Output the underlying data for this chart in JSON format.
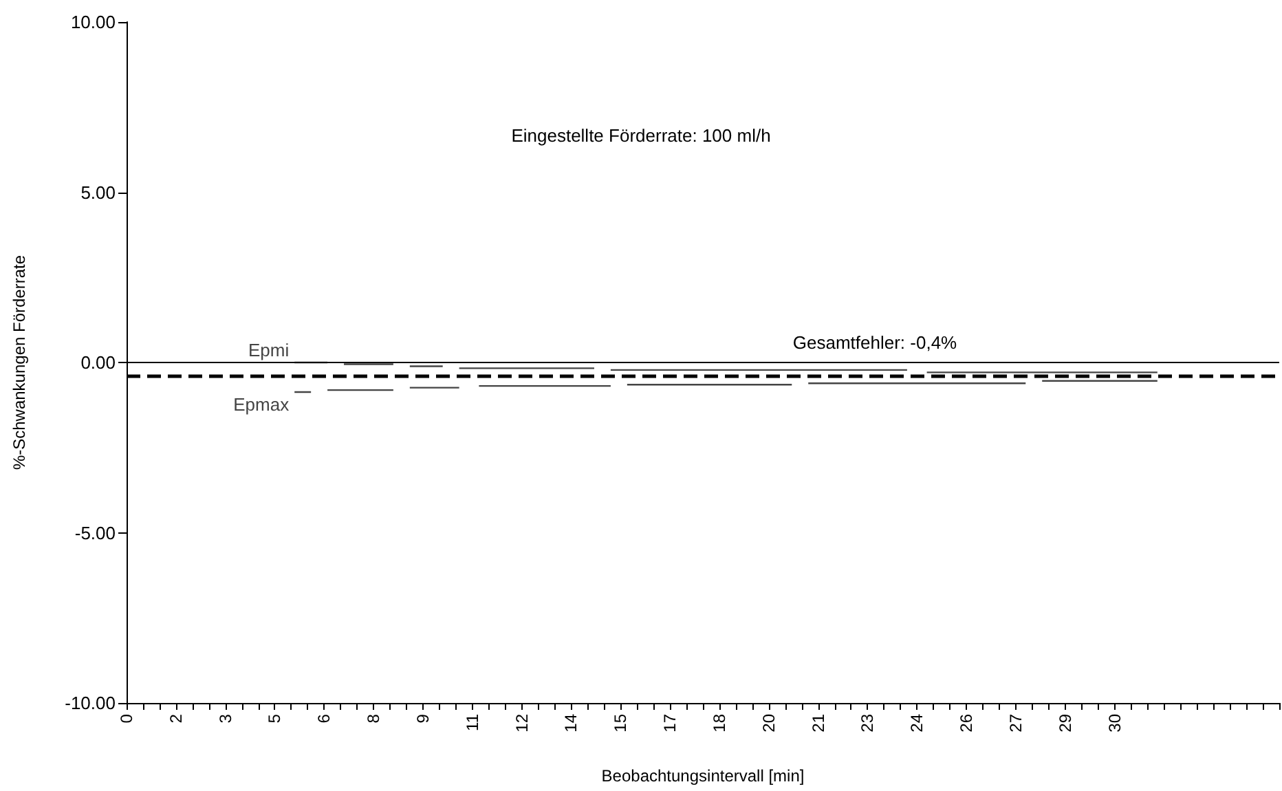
{
  "chart_data": {
    "type": "line",
    "xlabel": "Beobachtungsintervall [min]",
    "ylabel": "%-Schwankungen Förderrate",
    "xlim": [
      0,
      35
    ],
    "ylim": [
      -10,
      10
    ],
    "yticks": [
      {
        "value": -10,
        "label": "-10.00"
      },
      {
        "value": -5,
        "label": "-5.00"
      },
      {
        "value": 0,
        "label": "0.00"
      },
      {
        "value": 5,
        "label": "5.00"
      },
      {
        "value": 10,
        "label": "10.00"
      }
    ],
    "xticks": [
      0,
      {
        "value": 0.5,
        "label": null
      },
      {
        "value": 1,
        "label": null
      },
      {
        "value": 1.5,
        "label": "2"
      },
      {
        "value": 2,
        "label": null
      },
      {
        "value": 2.5,
        "label": null
      },
      3,
      {
        "value": 3.5,
        "label": null
      },
      {
        "value": 4,
        "label": null
      },
      {
        "value": 4.5,
        "label": "5"
      },
      {
        "value": 5,
        "label": null
      },
      {
        "value": 5.5,
        "label": null
      },
      6,
      {
        "value": 6.5,
        "label": null
      },
      {
        "value": 7,
        "label": null
      },
      {
        "value": 7.5,
        "label": "8"
      },
      {
        "value": 8,
        "label": null
      },
      {
        "value": 8.5,
        "label": null
      },
      9,
      {
        "value": 9.5,
        "label": null
      },
      {
        "value": 10,
        "label": null
      },
      {
        "value": 10.5,
        "label": "11"
      },
      {
        "value": 11,
        "label": null
      },
      {
        "value": 11.5,
        "label": null
      },
      12,
      {
        "value": 12.5,
        "label": null
      },
      {
        "value": 13,
        "label": null
      },
      {
        "value": 13.5,
        "label": "14"
      },
      {
        "value": 14,
        "label": null
      },
      {
        "value": 14.5,
        "label": null
      },
      15,
      {
        "value": 15.5,
        "label": null
      },
      {
        "value": 16,
        "label": null
      },
      {
        "value": 16.5,
        "label": "17"
      },
      {
        "value": 17,
        "label": null
      },
      {
        "value": 17.5,
        "label": null
      },
      18,
      {
        "value": 18.5,
        "label": null
      },
      {
        "value": 19,
        "label": null
      },
      {
        "value": 19.5,
        "label": "20"
      },
      {
        "value": 20,
        "label": null
      },
      {
        "value": 20.5,
        "label": null
      },
      21,
      {
        "value": 21.5,
        "label": null
      },
      {
        "value": 22,
        "label": null
      },
      {
        "value": 22.5,
        "label": "23"
      },
      {
        "value": 23,
        "label": null
      },
      {
        "value": 23.5,
        "label": null
      },
      24,
      {
        "value": 24.5,
        "label": null
      },
      {
        "value": 25,
        "label": null
      },
      {
        "value": 25.5,
        "label": "26"
      },
      {
        "value": 26,
        "label": null
      },
      {
        "value": 26.5,
        "label": null
      },
      27,
      {
        "value": 27.5,
        "label": null
      },
      {
        "value": 28,
        "label": null
      },
      {
        "value": 28.5,
        "label": "29"
      },
      {
        "value": 29,
        "label": null
      },
      {
        "value": 29.5,
        "label": null
      },
      30,
      {
        "value": 30.5,
        "label": null
      },
      {
        "value": 31,
        "label": null
      },
      {
        "value": 31.5,
        "label": null
      },
      {
        "value": 32,
        "label": null
      },
      {
        "value": 32.5,
        "label": null
      },
      {
        "value": 33,
        "label": null
      },
      {
        "value": 33.5,
        "label": null
      },
      {
        "value": 34,
        "label": null
      },
      {
        "value": 34.5,
        "label": null
      },
      {
        "value": 35,
        "label": null
      }
    ],
    "series": [
      {
        "name": "Epmi",
        "color": "#444444",
        "x": [
          5.1,
          6.1,
          null,
          6.6,
          8.1,
          null,
          8.6,
          9.6,
          null,
          10.1,
          14.2,
          null,
          14.7,
          23.7,
          null,
          24.3,
          31.3
        ],
        "values": [
          0.0,
          0.0,
          null,
          -0.05,
          -0.05,
          null,
          -0.11,
          -0.11,
          null,
          -0.17,
          -0.17,
          null,
          -0.22,
          -0.22,
          null,
          -0.29,
          -0.29
        ]
      },
      {
        "name": "Epmax",
        "color": "#444444",
        "x": [
          5.1,
          5.6,
          null,
          6.1,
          8.1,
          null,
          8.6,
          10.1,
          null,
          10.7,
          14.7,
          null,
          15.2,
          20.2,
          null,
          20.7,
          27.3,
          null,
          27.8,
          31.3
        ],
        "values": [
          -0.87,
          -0.87,
          null,
          -0.81,
          -0.81,
          null,
          -0.74,
          -0.74,
          null,
          -0.69,
          -0.69,
          null,
          -0.65,
          -0.65,
          null,
          -0.61,
          -0.61,
          null,
          -0.54,
          -0.54
        ]
      }
    ],
    "ref_lines": [
      {
        "axis": "y",
        "value": 0,
        "color": "#000000",
        "line_style": "solid"
      },
      {
        "axis": "y",
        "value": -0.4,
        "color": "#000000",
        "line_style": "dashed",
        "label": "Gesamtfehler: -0,4%"
      }
    ],
    "annotations": [
      "Eingestellte Förderrate: 100 ml/h"
    ],
    "marker": "none",
    "line_style": "solid",
    "grid": false,
    "legend": false
  }
}
